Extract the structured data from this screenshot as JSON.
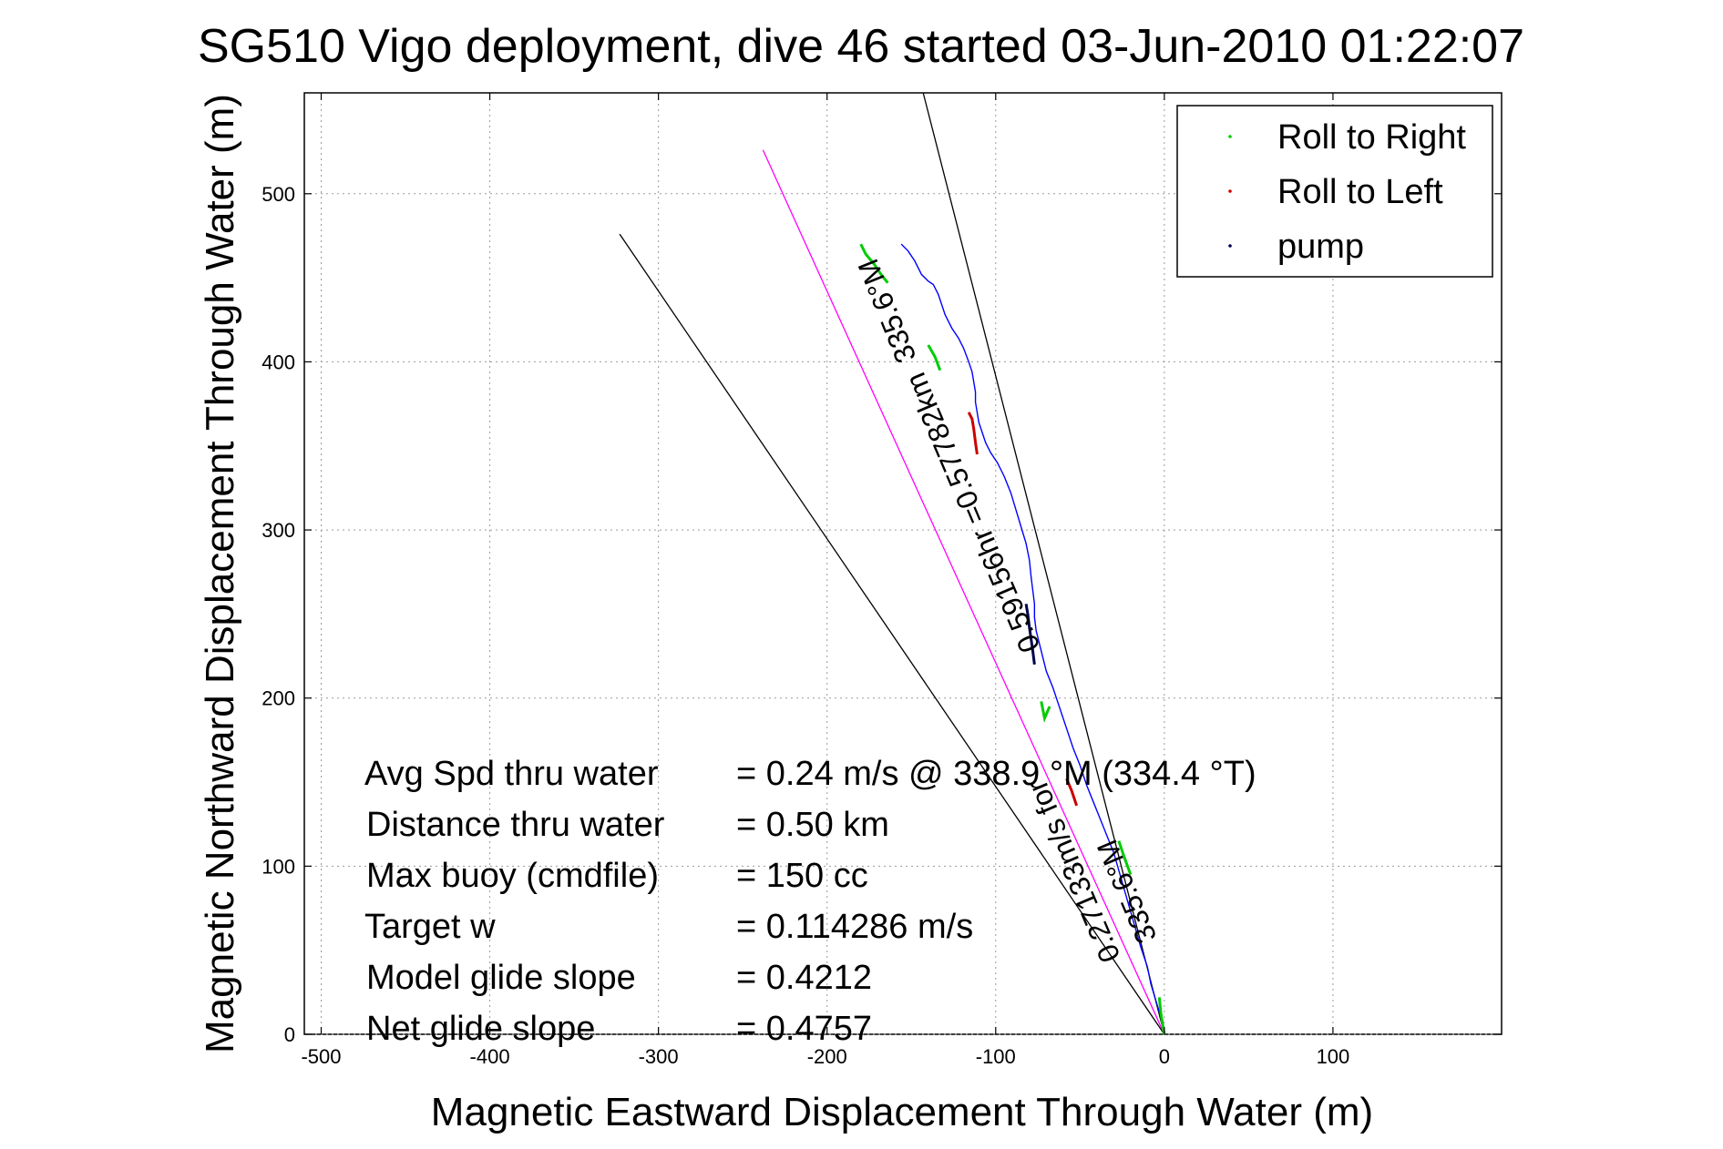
{
  "chart_data": {
    "type": "line",
    "title": "SG510 Vigo deployment, dive 46 started 03-Jun-2010 01:22:07",
    "xlabel": "Magnetic Eastward Displacement Through Water (m)",
    "ylabel": "Magnetic Northward Displacement Through Water (m)",
    "xlim": [
      -510,
      200
    ],
    "ylim": [
      0,
      560
    ],
    "xticks": [
      -500,
      -400,
      -300,
      -200,
      -100,
      0,
      100
    ],
    "yticks": [
      0,
      100,
      200,
      300,
      400,
      500
    ],
    "grid": true,
    "legend_position": "top-right",
    "legend": [
      {
        "label": "Roll to Right",
        "color": "#00cc00"
      },
      {
        "label": "Roll to Left",
        "color": "#cc0000"
      },
      {
        "label": "pump",
        "color": "#00004d"
      }
    ],
    "track": {
      "name": "track",
      "color": "#0000ff",
      "x": [
        0,
        -2,
        -5,
        -8,
        -10,
        -14,
        -18,
        -22,
        -26,
        -30,
        -34,
        -38,
        -42,
        -46,
        -50,
        -54,
        -58,
        -62,
        -66,
        -70,
        -72,
        -74,
        -76,
        -77,
        -77,
        -78,
        -79,
        -80,
        -82,
        -85,
        -88,
        -91,
        -95,
        -99,
        -103,
        -106,
        -108,
        -110,
        -111,
        -112,
        -112,
        -113,
        -114,
        -116,
        -119,
        -122,
        -126,
        -130,
        -134,
        -137,
        -140,
        -144,
        -148,
        -152,
        -156,
        -160,
        -164,
        -168,
        -172,
        -176,
        -179,
        -180
      ],
      "y": [
        0,
        10,
        20,
        30,
        40,
        52,
        66,
        80,
        94,
        108,
        118,
        128,
        138,
        148,
        160,
        170,
        182,
        194,
        206,
        216,
        224,
        232,
        240,
        248,
        256,
        264,
        272,
        282,
        292,
        302,
        312,
        322,
        332,
        340,
        346,
        352,
        358,
        364,
        370,
        376,
        382,
        388,
        394,
        400,
        408,
        414,
        420,
        428,
        440,
        446,
        448,
        452,
        460,
        466,
        470,
        476,
        480,
        486,
        494,
        500,
        506,
        514
      ],
      "clip_ymax": 472
    },
    "roll_right_segments": [
      {
        "x": [
          0,
          -2,
          -3
        ],
        "y": [
          0,
          12,
          22
        ]
      },
      {
        "x": [
          -20,
          -24,
          -27
        ],
        "y": [
          95,
          106,
          115
        ]
      },
      {
        "x": [
          -68,
          -71,
          -73
        ],
        "y": [
          195,
          188,
          198
        ]
      },
      {
        "x": [
          -133,
          -136,
          -140
        ],
        "y": [
          395,
          403,
          410
        ]
      },
      {
        "x": [
          -164,
          -168,
          -172,
          -177,
          -180
        ],
        "y": [
          447,
          452,
          458,
          464,
          470
        ]
      }
    ],
    "roll_left_segments": [
      {
        "x": [
          -52,
          -55,
          -58
        ],
        "y": [
          136,
          145,
          152
        ]
      },
      {
        "x": [
          -111,
          -112,
          -113,
          -114,
          -116
        ],
        "y": [
          345,
          352,
          360,
          366,
          370
        ]
      }
    ],
    "pump_segments": [
      {
        "x": [
          -77,
          -78,
          -79,
          -80,
          -81,
          -82
        ],
        "y": [
          220,
          228,
          235,
          242,
          250,
          256
        ]
      }
    ],
    "heading_line": {
      "color": "#ff00ff",
      "x": [
        0,
        -238
      ],
      "y": [
        0,
        526
      ]
    },
    "bracket_lines": [
      {
        "color": "#000000",
        "x": [
          0,
          -323
        ],
        "y": [
          0,
          476
        ]
      },
      {
        "color": "#000000",
        "x": [
          0,
          -143
        ],
        "y": [
          0,
          560
        ]
      }
    ],
    "annotations": {
      "heading_upper": "335.6°M",
      "heading_lower": "335.6°M",
      "speed_line": "0.59156hr =0.57782km",
      "speed_prefix": "0.27133m/s for",
      "x_marker": "M"
    },
    "stats": [
      {
        "label": "Avg Spd thru water",
        "value": "=  0.24 m/s @ 338.9 °M (334.4 °T)"
      },
      {
        "label": "Distance thru water",
        "value": "=  0.50 km"
      },
      {
        "label": "Max buoy (cmdfile)",
        "value": "= 150 cc"
      },
      {
        "label": "Target w",
        "value": "= 0.114286 m/s"
      },
      {
        "label": "Model glide slope",
        "value": "= 0.4212"
      },
      {
        "label": "Net glide slope",
        "value": "= 0.4757"
      }
    ]
  }
}
